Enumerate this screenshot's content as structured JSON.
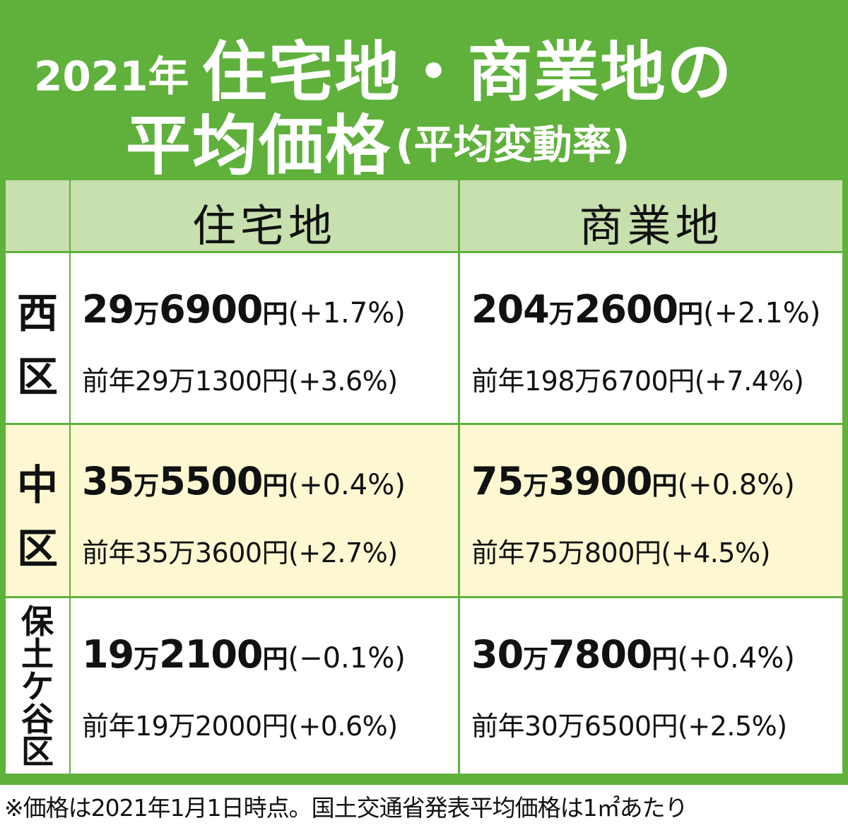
{
  "title": {
    "year": "2021年",
    "line1": "住宅地・商業地の",
    "line2": "平均価格",
    "sub": "(平均変動率)"
  },
  "columns": {
    "residential": "住宅地",
    "commercial": "商業地"
  },
  "rows": [
    {
      "ward_chars": [
        "西",
        "区"
      ],
      "residential": {
        "man": "29",
        "man_unit": "万",
        "rest": "6900",
        "yen": "円",
        "change": "(+1.7%)",
        "prev": "前年29万1300円(+3.6%)"
      },
      "commercial": {
        "man": "204",
        "man_unit": "万",
        "rest": "2600",
        "yen": "円",
        "change": "(+2.1%)",
        "prev": "前年198万6700円(+7.4%)"
      }
    },
    {
      "ward_chars": [
        "中",
        "区"
      ],
      "residential": {
        "man": "35",
        "man_unit": "万",
        "rest": "5500",
        "yen": "円",
        "change": "(+0.4%)",
        "prev": "前年35万3600円(+2.7%)"
      },
      "commercial": {
        "man": "75",
        "man_unit": "万",
        "rest": "3900",
        "yen": "円",
        "change": "(+0.8%)",
        "prev": "前年75万800円(+4.5%)"
      }
    },
    {
      "ward_chars": [
        "保",
        "土",
        "ケ",
        "谷",
        "区"
      ],
      "residential": {
        "man": "19",
        "man_unit": "万",
        "rest": "2100",
        "yen": "円",
        "change": "(−0.1%)",
        "prev": "前年19万2000円(+0.6%)"
      },
      "commercial": {
        "man": "30",
        "man_unit": "万",
        "rest": "7800",
        "yen": "円",
        "change": "(+0.4%)",
        "prev": "前年30万6500円(+2.5%)"
      }
    }
  ],
  "footnote": "※価格は2021年1月1日時点。国土交通省発表平均価格は1㎡あたり",
  "colors": {
    "frame_green": "#5fb13c",
    "header_green": "#c8dfae",
    "highlight_yellow": "#fdf8d2"
  }
}
